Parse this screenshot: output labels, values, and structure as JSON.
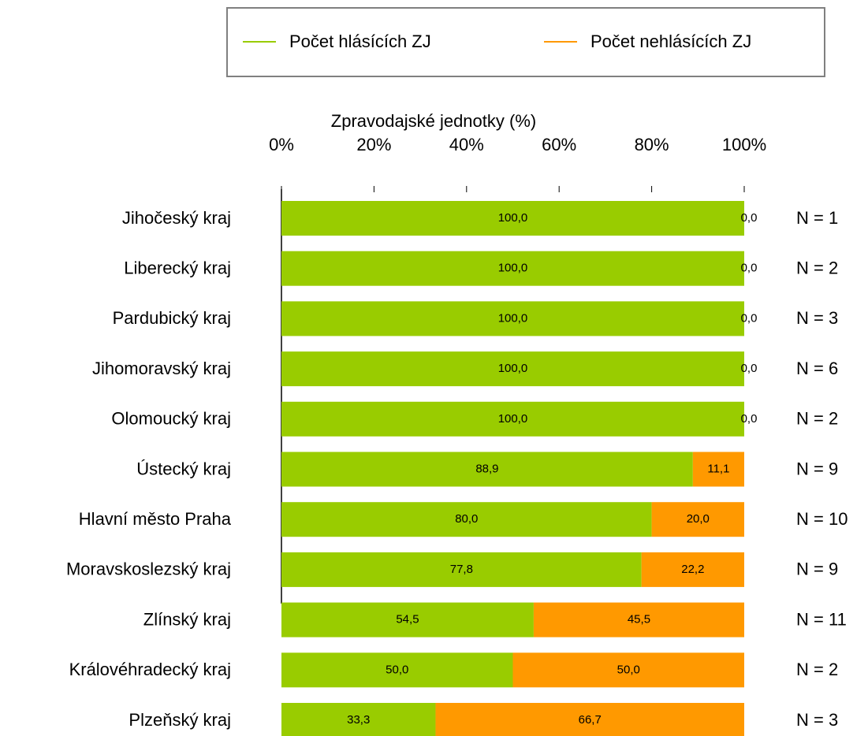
{
  "chart_data": {
    "type": "stacked_barh",
    "x_label": "Zpravodajské jednotky (%)",
    "categories": [
      "Jihočeský kraj",
      "Liberecký kraj",
      "Pardubický kraj",
      "Jihomoravský kraj",
      "Olomoucký kraj",
      "Ústecký kraj",
      "Hlavní město Praha",
      "Moravskoslezský kraj",
      "Zlínský kraj",
      "Královéhradecký kraj",
      "Plzeňský kraj"
    ],
    "series": [
      {
        "name": "Počet hlásících ZJ",
        "color": "#99cc00",
        "values": [
          100,
          100,
          100,
          100,
          100,
          88.9,
          80,
          77.8,
          54.5,
          50,
          33.3
        ],
        "value_labels": [
          "100,0",
          "100,0",
          "100,0",
          "100,0",
          "100,0",
          "88,9",
          "80,0",
          "77,8",
          "54,5",
          "50,0",
          "33,3"
        ]
      },
      {
        "name": "Počet nehlásících ZJ",
        "color": "#ff9900",
        "values": [
          0,
          0,
          0,
          0,
          0,
          11.1,
          20,
          22.2,
          45.5,
          50,
          66.7
        ],
        "value_labels": [
          "0,0",
          "0,0",
          "0,0",
          "0,0",
          "0,0",
          "11,1",
          "20,0",
          "22,2",
          "45,5",
          "50,0",
          "66,7"
        ]
      }
    ],
    "annotations": [
      "N = 1",
      "N = 2",
      "N = 3",
      "N = 6",
      "N = 2",
      "N = 9",
      "N = 10",
      "N = 9",
      "N = 11",
      "N = 2",
      "N = 3"
    ],
    "xlim": [
      0,
      100
    ],
    "xticks": [
      {
        "value": 0,
        "label": "0%"
      },
      {
        "value": 20,
        "label": "20%"
      },
      {
        "value": 40,
        "label": "40%"
      },
      {
        "value": 60,
        "label": "60%"
      },
      {
        "value": 80,
        "label": "80%"
      },
      {
        "value": 100,
        "label": "100%"
      }
    ],
    "legend": "top"
  }
}
